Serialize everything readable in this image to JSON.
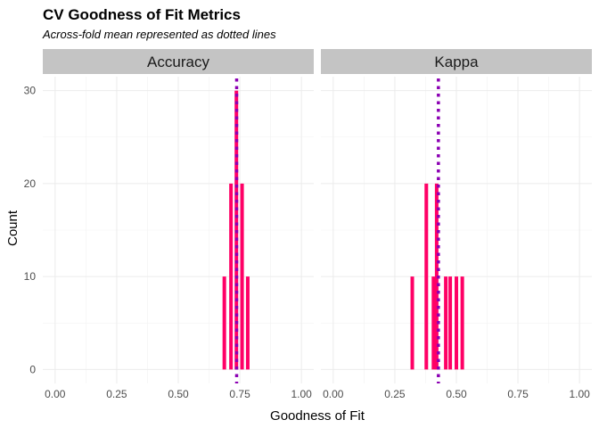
{
  "chart_data": {
    "type": "bar",
    "title": "CV Goodness of Fit Metrics",
    "subtitle": "Across-fold mean represented as dotted lines",
    "xlabel": "Goodness of Fit",
    "ylabel": "Count",
    "xlim": [
      -0.05,
      1.05
    ],
    "ylim": [
      -1.5,
      31.5
    ],
    "x_ticks": [
      "0.00",
      "0.25",
      "0.50",
      "0.75",
      "1.00"
    ],
    "y_ticks": [
      "0",
      "10",
      "20",
      "30"
    ],
    "grid": true,
    "bar_color": "#ff0066",
    "mean_line_color": "#8b00b3",
    "strip_color": "#c4c4c4",
    "panels": [
      {
        "label": "Accuracy",
        "mean": 0.737,
        "bars": [
          {
            "x": 0.687,
            "count": 10
          },
          {
            "x": 0.714,
            "count": 20
          },
          {
            "x": 0.736,
            "count": 30
          },
          {
            "x": 0.759,
            "count": 20
          },
          {
            "x": 0.782,
            "count": 10
          }
        ]
      },
      {
        "label": "Kappa",
        "mean": 0.427,
        "bars": [
          {
            "x": 0.321,
            "count": 10
          },
          {
            "x": 0.378,
            "count": 20
          },
          {
            "x": 0.407,
            "count": 10
          },
          {
            "x": 0.42,
            "count": 20
          },
          {
            "x": 0.457,
            "count": 10
          },
          {
            "x": 0.475,
            "count": 10
          },
          {
            "x": 0.5,
            "count": 10
          },
          {
            "x": 0.524,
            "count": 10
          }
        ]
      }
    ]
  }
}
